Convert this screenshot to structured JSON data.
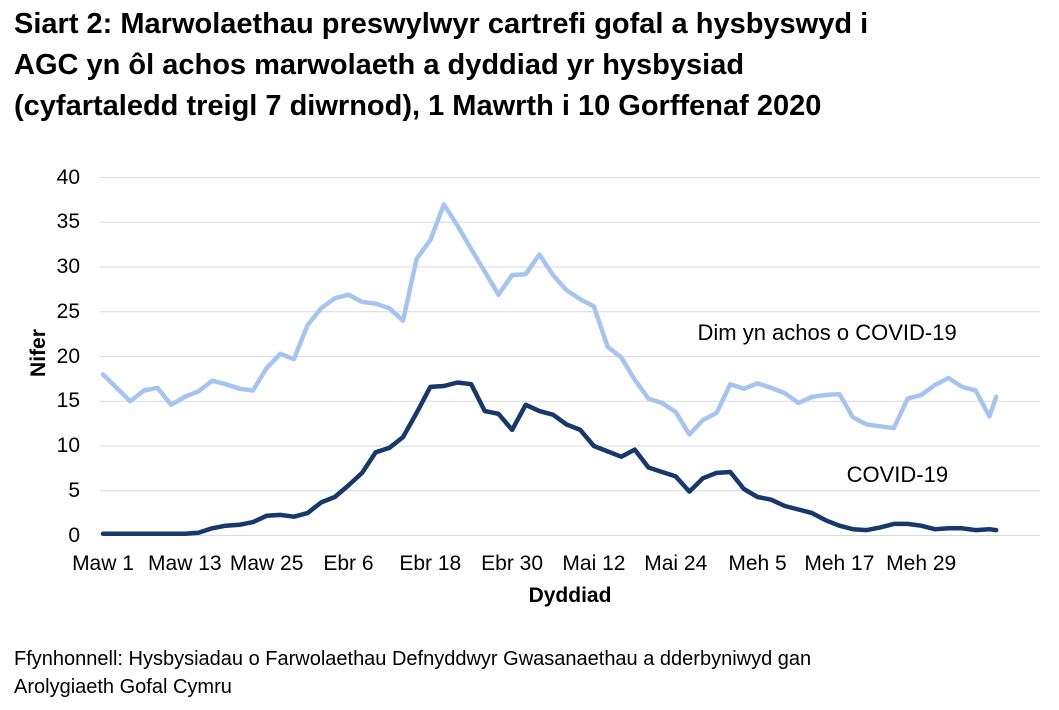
{
  "title": {
    "lines": [
      "Siart 2: Marwolaethau preswylwyr cartrefi gofal a hysbyswyd i",
      "AGC yn ôl achos marwolaeth a dyddiad yr hysbysiad",
      "(cyfartaledd treigl 7 diwrnod), 1 Mawrth i 10 Gorffenaf 2020"
    ]
  },
  "footer": {
    "lines": [
      "Ffynhonnell: Hysbysiadau o Farwolaethau Defnyddwyr Gwasanaethau a dderbyniwyd gan",
      "Arolygiaeth Gofal Cymru"
    ]
  },
  "chart_data": {
    "type": "line",
    "xlabel": "Dyddiad",
    "ylabel": "Nifer",
    "ylim": [
      0,
      40
    ],
    "ytick_step": 5,
    "yticks": [
      0,
      5,
      10,
      15,
      20,
      25,
      30,
      35,
      40
    ],
    "grid": true,
    "grid_color": "#D9D9D9",
    "x_range_days": [
      0,
      131
    ],
    "x_range_dates": [
      "1 Mawrth 2020",
      "10 Gorffenaf 2020"
    ],
    "xticks": [
      {
        "day": 0,
        "label": "Maw 1"
      },
      {
        "day": 12,
        "label": "Maw 13"
      },
      {
        "day": 24,
        "label": "Maw 25"
      },
      {
        "day": 36,
        "label": "Ebr 6"
      },
      {
        "day": 48,
        "label": "Ebr 18"
      },
      {
        "day": 60,
        "label": "Ebr 30"
      },
      {
        "day": 72,
        "label": "Mai 12"
      },
      {
        "day": 84,
        "label": "Mai 24"
      },
      {
        "day": 96,
        "label": "Meh 5"
      },
      {
        "day": 108,
        "label": "Meh 17"
      },
      {
        "day": 120,
        "label": "Meh 29"
      }
    ],
    "x_days": [
      0,
      2,
      4,
      6,
      8,
      10,
      12,
      14,
      16,
      18,
      20,
      22,
      24,
      26,
      28,
      30,
      32,
      34,
      36,
      38,
      40,
      42,
      44,
      46,
      48,
      50,
      52,
      54,
      56,
      58,
      60,
      62,
      64,
      66,
      68,
      70,
      72,
      74,
      76,
      78,
      80,
      82,
      84,
      86,
      88,
      90,
      92,
      94,
      96,
      98,
      100,
      102,
      104,
      106,
      108,
      110,
      112,
      114,
      116,
      118,
      120,
      122,
      124,
      126,
      128,
      130,
      131
    ],
    "series": [
      {
        "id": "non-covid",
        "name": "Dim yn achos o COVID-19",
        "color": "#A5C5F0",
        "values": [
          18.0,
          16.5,
          15.0,
          16.2,
          16.5,
          14.6,
          15.5,
          16.1,
          17.3,
          16.9,
          16.4,
          16.2,
          18.7,
          20.3,
          19.7,
          23.5,
          25.4,
          26.5,
          26.9,
          26.1,
          25.9,
          25.4,
          24.0,
          30.9,
          33.0,
          37.0,
          34.6,
          32.0,
          29.5,
          26.9,
          29.1,
          29.2,
          31.4,
          29.1,
          27.4,
          26.4,
          25.6,
          21.1,
          19.9,
          17.4,
          15.3,
          14.8,
          13.8,
          11.3,
          12.9,
          13.7,
          16.9,
          16.4,
          17.0,
          16.5,
          15.9,
          14.8,
          15.5,
          15.7,
          15.8,
          13.2,
          12.4,
          12.2,
          12.0,
          15.3,
          15.7,
          16.8,
          17.6,
          16.6,
          16.2,
          13.3,
          15.5
        ]
      },
      {
        "id": "covid",
        "name": "COVID-19",
        "color": "#17386B",
        "values": [
          0.2,
          0.2,
          0.2,
          0.2,
          0.2,
          0.2,
          0.2,
          0.3,
          0.8,
          1.1,
          1.2,
          1.5,
          2.2,
          2.3,
          2.1,
          2.5,
          3.7,
          4.3,
          5.6,
          7.0,
          9.3,
          9.8,
          11.0,
          13.7,
          16.6,
          16.7,
          17.1,
          16.9,
          13.9,
          13.6,
          11.8,
          14.6,
          13.9,
          13.5,
          12.4,
          11.8,
          10.0,
          9.4,
          8.8,
          9.6,
          7.6,
          7.1,
          6.6,
          4.9,
          6.4,
          7.0,
          7.1,
          5.2,
          4.3,
          4.0,
          3.3,
          2.9,
          2.5,
          1.7,
          1.1,
          0.7,
          0.6,
          0.9,
          1.3,
          1.3,
          1.1,
          0.7,
          0.8,
          0.8,
          0.6,
          0.7,
          0.6
        ]
      }
    ],
    "annotations": [
      {
        "text": "Dim yn achos o COVID-19",
        "day": 106.2,
        "value": 22.6
      },
      {
        "text": "COVID-19",
        "day": 116.5,
        "value": 6.8
      }
    ]
  }
}
